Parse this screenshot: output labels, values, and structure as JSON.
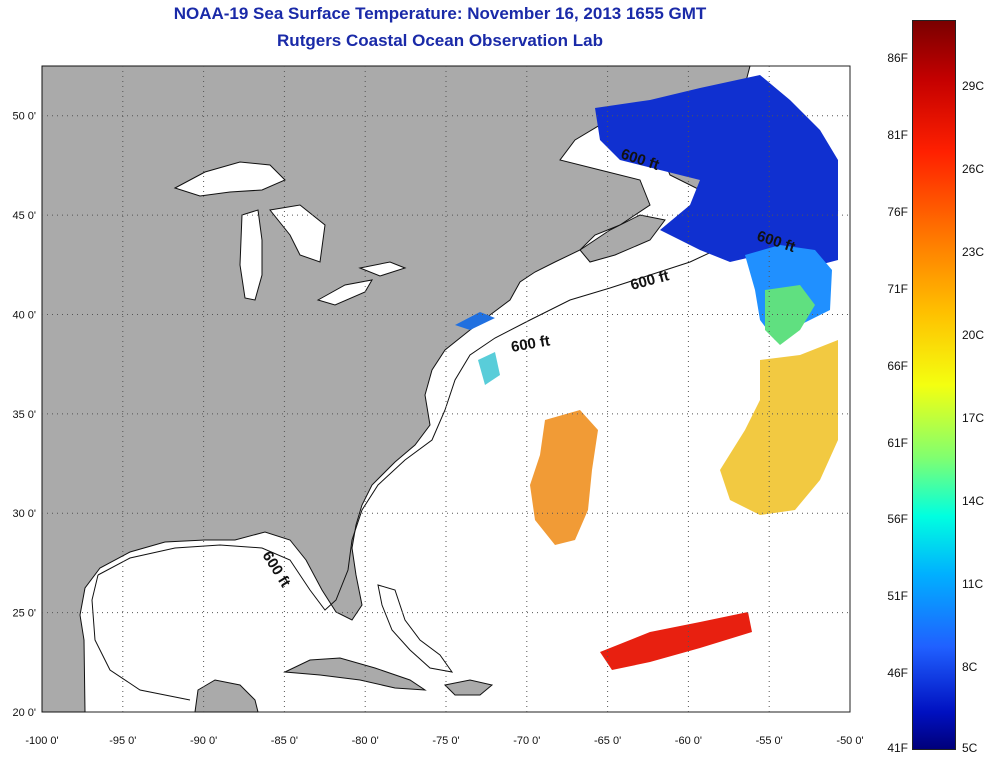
{
  "title": {
    "line1": "NOAA-19 Sea Surface Temperature:  November 16, 2013 1655 GMT",
    "line2": "Rutgers Coastal Ocean Observation Lab"
  },
  "map": {
    "lon_range": [
      -100,
      -50
    ],
    "lat_range": [
      20,
      52.5
    ],
    "lon_ticks": [
      "-100 0'",
      "-95 0'",
      "-90 0'",
      "-85 0'",
      "-80 0'",
      "-75 0'",
      "-70 0'",
      "-65 0'",
      "-60 0'",
      "-55 0'",
      "-50 0'"
    ],
    "lat_ticks": [
      "50 0'",
      "45 0'",
      "40 0'",
      "35 0'",
      "30 0'",
      "25 0'",
      "20 0'"
    ],
    "contour_label": "600 ft",
    "colors": {
      "land": "#aaaaaa",
      "ocean": "#ffffff",
      "grid": "#666666"
    }
  },
  "colorbar": {
    "fahrenheit": [
      "86F",
      "81F",
      "76F",
      "71F",
      "66F",
      "61F",
      "56F",
      "51F",
      "46F",
      "41F"
    ],
    "celsius": [
      "29C",
      "26C",
      "23C",
      "20C",
      "17C",
      "14C",
      "11C",
      "8C",
      "5C"
    ]
  }
}
